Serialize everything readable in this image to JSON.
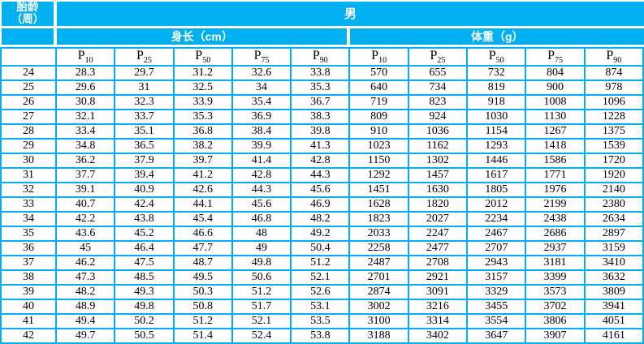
{
  "colors": {
    "accent": "#00b0f0",
    "header_text": "#ffffff",
    "data_text": "#000000"
  },
  "table": {
    "corner_header": "胎龄\n（周）",
    "sex_header": "男",
    "sections": [
      {
        "label": "身长（cm）"
      },
      {
        "label": "体重（g）"
      }
    ],
    "percentile_prefix": "P",
    "percentiles": [
      "10",
      "25",
      "50",
      "75",
      "90"
    ],
    "rows": [
      {
        "week": "24",
        "length": [
          "28.3",
          "29.7",
          "31.2",
          "32.6",
          "33.8"
        ],
        "weight": [
          "570",
          "655",
          "732",
          "804",
          "874"
        ]
      },
      {
        "week": "25",
        "length": [
          "29.6",
          "31",
          "32.5",
          "34",
          "35.3"
        ],
        "weight": [
          "640",
          "734",
          "819",
          "900",
          "978"
        ]
      },
      {
        "week": "26",
        "length": [
          "30.8",
          "32.3",
          "33.9",
          "35.4",
          "36.7"
        ],
        "weight": [
          "719",
          "823",
          "918",
          "1008",
          "1096"
        ]
      },
      {
        "week": "27",
        "length": [
          "32.1",
          "33.7",
          "35.3",
          "36.9",
          "38.3"
        ],
        "weight": [
          "809",
          "924",
          "1030",
          "1130",
          "1228"
        ]
      },
      {
        "week": "28",
        "length": [
          "33.4",
          "35.1",
          "36.8",
          "38.4",
          "39.8"
        ],
        "weight": [
          "910",
          "1036",
          "1154",
          "1267",
          "1375"
        ]
      },
      {
        "week": "29",
        "length": [
          "34.8",
          "36.5",
          "38.2",
          "39.9",
          "41.3"
        ],
        "weight": [
          "1023",
          "1162",
          "1293",
          "1418",
          "1539"
        ]
      },
      {
        "week": "30",
        "length": [
          "36.2",
          "37.9",
          "39.7",
          "41.4",
          "42.8"
        ],
        "weight": [
          "1150",
          "1302",
          "1446",
          "1586",
          "1720"
        ]
      },
      {
        "week": "31",
        "length": [
          "37.7",
          "39.4",
          "41.2",
          "42.8",
          "44.3"
        ],
        "weight": [
          "1292",
          "1457",
          "1617",
          "1771",
          "1920"
        ]
      },
      {
        "week": "32",
        "length": [
          "39.1",
          "40.9",
          "42.6",
          "44.3",
          "45.6"
        ],
        "weight": [
          "1451",
          "1630",
          "1805",
          "1976",
          "2140"
        ]
      },
      {
        "week": "33",
        "length": [
          "40.7",
          "42.4",
          "44.1",
          "45.6",
          "46.9"
        ],
        "weight": [
          "1628",
          "1820",
          "2012",
          "2199",
          "2380"
        ]
      },
      {
        "week": "34",
        "length": [
          "42.2",
          "43.8",
          "45.4",
          "46.8",
          "48.2"
        ],
        "weight": [
          "1823",
          "2027",
          "2234",
          "2438",
          "2634"
        ]
      },
      {
        "week": "35",
        "length": [
          "43.6",
          "45.2",
          "46.6",
          "48",
          "49.2"
        ],
        "weight": [
          "2033",
          "2247",
          "2467",
          "2686",
          "2897"
        ]
      },
      {
        "week": "36",
        "length": [
          "45",
          "46.4",
          "47.7",
          "49",
          "50.4"
        ],
        "weight": [
          "2258",
          "2477",
          "2707",
          "2937",
          "3159"
        ]
      },
      {
        "week": "37",
        "length": [
          "46.2",
          "47.5",
          "48.7",
          "49.8",
          "51.2"
        ],
        "weight": [
          "2487",
          "2708",
          "2943",
          "3181",
          "3410"
        ]
      },
      {
        "week": "38",
        "length": [
          "47.3",
          "48.5",
          "49.5",
          "50.6",
          "52.1"
        ],
        "weight": [
          "2701",
          "2921",
          "3157",
          "3399",
          "3632"
        ]
      },
      {
        "week": "39",
        "length": [
          "48.2",
          "49.3",
          "50.3",
          "51.2",
          "52.6"
        ],
        "weight": [
          "2874",
          "3091",
          "3329",
          "3573",
          "3809"
        ]
      },
      {
        "week": "40",
        "length": [
          "48.9",
          "49.8",
          "50.8",
          "51.7",
          "53.1"
        ],
        "weight": [
          "3002",
          "3216",
          "3455",
          "3702",
          "3941"
        ]
      },
      {
        "week": "41",
        "length": [
          "49.4",
          "50.2",
          "51.2",
          "52.1",
          "53.5"
        ],
        "weight": [
          "3100",
          "3314",
          "3554",
          "3806",
          "4051"
        ]
      },
      {
        "week": "42",
        "length": [
          "49.7",
          "50.5",
          "51.4",
          "52.4",
          "53.8"
        ],
        "weight": [
          "3188",
          "3402",
          "3647",
          "3907",
          "4161"
        ]
      }
    ]
  }
}
